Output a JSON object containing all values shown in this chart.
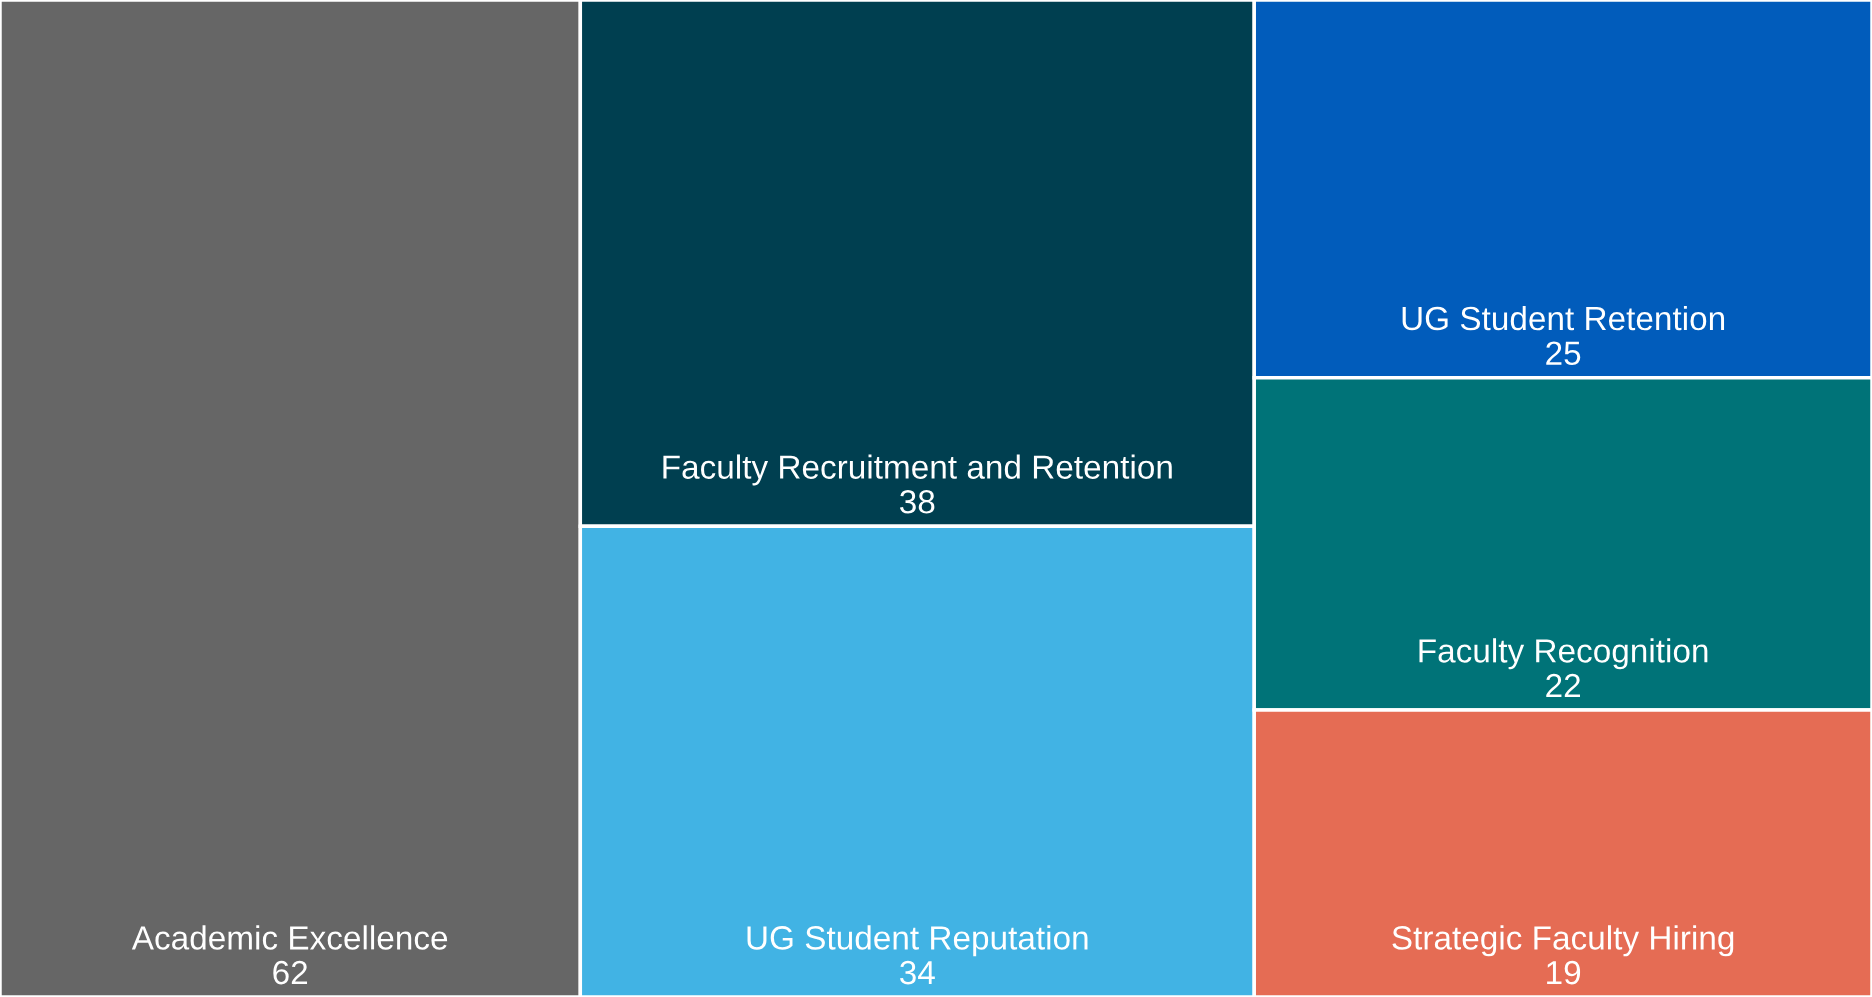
{
  "chart_data": {
    "type": "other",
    "categories": [
      "Academic Excellence",
      "Faculty Recruitment and Retention",
      "UG Student Reputation",
      "UG Student Retention",
      "Faculty Recognition",
      "Strategic Faculty Hiring"
    ],
    "values": [
      62,
      38,
      34,
      25,
      22,
      19
    ],
    "colors": [
      "#666666",
      "#003f50",
      "#41b3e4",
      "#015cbb",
      "#007378",
      "#e56c54"
    ],
    "data_labels": true
  }
}
